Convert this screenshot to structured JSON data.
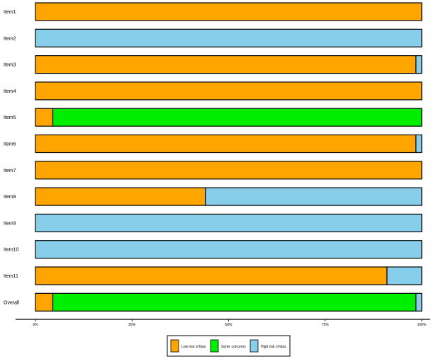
{
  "chart_data": {
    "type": "bar",
    "orientation": "horizontal",
    "stacked": true,
    "categories": [
      "Item1",
      "Item2",
      "Item3",
      "Item4",
      "Item5",
      "Item6",
      "Item7",
      "Item8",
      "Item9",
      "Item10",
      "Item11",
      "Overall"
    ],
    "x_ticks": [
      {
        "value": 0,
        "label": "0%"
      },
      {
        "value": 25,
        "label": "25%"
      },
      {
        "value": 50,
        "label": "50%"
      },
      {
        "value": 75,
        "label": "75%"
      },
      {
        "value": 100,
        "label": "100%"
      }
    ],
    "xlim": [
      0,
      100
    ],
    "series": [
      {
        "name": "Low risk of bias",
        "color": "#FFA500",
        "values": [
          100,
          0,
          98.5,
          100,
          4.5,
          98.5,
          100,
          44,
          0,
          0,
          91,
          4.5
        ]
      },
      {
        "name": "Some concerns",
        "color": "#00EE00",
        "values": [
          0,
          0,
          0,
          0,
          95.5,
          0,
          0,
          0,
          0,
          0,
          0,
          94
        ]
      },
      {
        "name": "High risk of bias",
        "color": "#87CEEB",
        "values": [
          0,
          100,
          1.5,
          0,
          0,
          1.5,
          0,
          56,
          100,
          100,
          9,
          1.5
        ]
      }
    ],
    "legend_position": "bottom",
    "grid": false
  }
}
